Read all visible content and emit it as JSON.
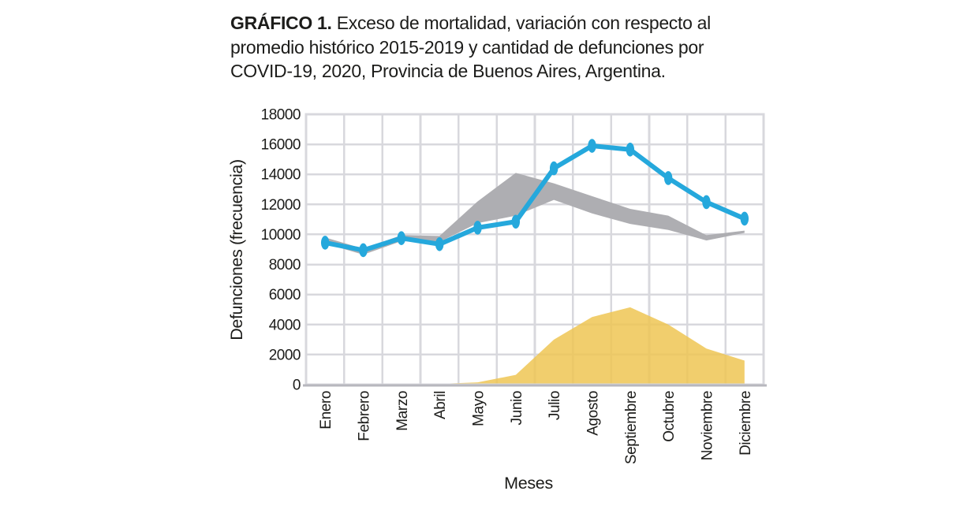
{
  "figure": {
    "title_prefix": "GRÁFICO 1.",
    "title_line1_rest": " Exceso de mortalidad, variación con respecto al",
    "title_line2": "promedio histórico 2015-2019 y cantidad de defunciones por",
    "title_line3": "COVID-19, 2020, Provincia de Buenos Aires, Argentina."
  },
  "chart_data": {
    "type": "line",
    "title": "GRÁFICO 1. Exceso de mortalidad, variación con respecto al promedio histórico 2015-2019 y cantidad de defunciones por COVID-19, 2020, Provincia de Buenos Aires, Argentina.",
    "xlabel": "Meses",
    "ylabel": "Defunciones (frecuencia)",
    "ylim": [
      0,
      18000
    ],
    "yticks": [
      0,
      2000,
      4000,
      6000,
      8000,
      10000,
      12000,
      14000,
      16000,
      18000
    ],
    "grid": true,
    "legend_position": "none",
    "categories": [
      "Enero",
      "Febrero",
      "Marzo",
      "Abril",
      "Mayo",
      "Junio",
      "Julio",
      "Agosto",
      "Septiembre",
      "Octubre",
      "Noviembre",
      "Diciembre"
    ],
    "series": [
      {
        "name": "defunciones_2020_line",
        "type": "line",
        "color": "#25a8dc",
        "marker": "vertical-ellipse",
        "values": [
          9450,
          8950,
          9750,
          9350,
          10450,
          10850,
          14400,
          15900,
          15650,
          13750,
          12150,
          11050
        ]
      },
      {
        "name": "promedio_historico_2015_2019_band",
        "type": "band",
        "color": "#aeaeb2",
        "upper": [
          9800,
          9050,
          9950,
          9900,
          12200,
          14100,
          13400,
          12550,
          11700,
          11250,
          9950,
          10250
        ],
        "lower": [
          9400,
          8650,
          9550,
          9500,
          10750,
          11250,
          12300,
          11400,
          10700,
          10300,
          9600,
          10100
        ]
      },
      {
        "name": "defunciones_covid19_area",
        "type": "area",
        "color": "#efc553",
        "opacity": 0.85,
        "values": [
          0,
          0,
          0,
          50,
          150,
          650,
          3000,
          4500,
          5150,
          4000,
          2400,
          1600
        ]
      }
    ],
    "colors": {
      "grid": "#d8d8dd",
      "axis": "#b7b7be",
      "text": "#1c1c1a"
    }
  }
}
